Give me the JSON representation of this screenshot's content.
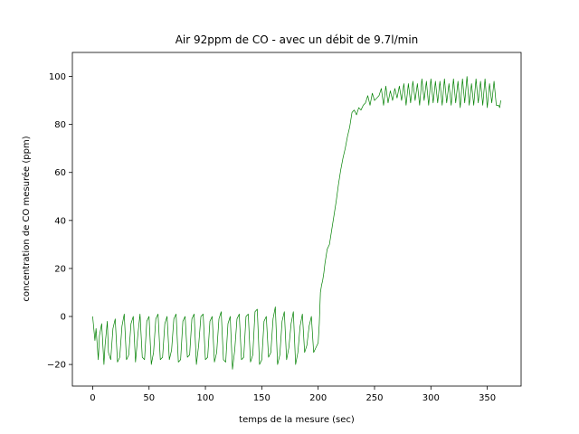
{
  "chart_data": {
    "type": "line",
    "title": "Air 92ppm de CO - avec un débit de 9.7l/min",
    "xlabel": "temps de la mesure (sec)",
    "ylabel": "concentration de CO mesurée (ppm)",
    "xlim": [
      -18,
      380
    ],
    "ylim": [
      -29,
      110
    ],
    "xticks": [
      0,
      50,
      100,
      150,
      200,
      250,
      300,
      350
    ],
    "yticks": [
      -20,
      0,
      20,
      40,
      60,
      80,
      100
    ],
    "grid": false,
    "series_color": "#008000",
    "series": [
      {
        "x": [
          0,
          2,
          3,
          5,
          6,
          8,
          10,
          11,
          13,
          14,
          16,
          18,
          20,
          22,
          24,
          26,
          28,
          30,
          32,
          34,
          36,
          38,
          40,
          42,
          44,
          46,
          48,
          50,
          52,
          54,
          56,
          58,
          60,
          62,
          64,
          66,
          68,
          70,
          72,
          74,
          76,
          78,
          80,
          82,
          84,
          86,
          88,
          90,
          92,
          94,
          96,
          98,
          100,
          102,
          104,
          106,
          108,
          110,
          112,
          114,
          116,
          118,
          120,
          122,
          124,
          126,
          128,
          130,
          132,
          134,
          136,
          138,
          140,
          142,
          144,
          146,
          148,
          150,
          152,
          154,
          156,
          158,
          160,
          162,
          164,
          166,
          168,
          170,
          172,
          174,
          176,
          178,
          180,
          182,
          184,
          186,
          188,
          190,
          192,
          194,
          196,
          198,
          200,
          201,
          202,
          203,
          204,
          205,
          206,
          207,
          208,
          210,
          211,
          212,
          214,
          216,
          218,
          220,
          222,
          224,
          226,
          228,
          230,
          232,
          234,
          236,
          238,
          240,
          242,
          244,
          246,
          248,
          250,
          252,
          254,
          256,
          258,
          260,
          262,
          264,
          266,
          268,
          270,
          272,
          274,
          276,
          278,
          280,
          282,
          284,
          286,
          288,
          290,
          292,
          294,
          296,
          298,
          300,
          302,
          304,
          306,
          308,
          310,
          312,
          314,
          316,
          318,
          320,
          322,
          324,
          326,
          328,
          330,
          332,
          334,
          336,
          338,
          340,
          342,
          344,
          346,
          348,
          350,
          352,
          354,
          356,
          358,
          360,
          361,
          362
        ],
        "y": [
          0,
          -10,
          -5,
          -18,
          -8,
          -3,
          -20,
          -12,
          -2,
          -15,
          -18,
          -5,
          -1,
          -19,
          -17,
          -4,
          1,
          -18,
          -16,
          -3,
          0,
          -19,
          -8,
          1,
          -17,
          -18,
          -2,
          0,
          -20,
          -15,
          -1,
          1,
          -18,
          -17,
          -3,
          0,
          -18,
          -14,
          -1,
          1,
          -19,
          -18,
          -2,
          0,
          -17,
          -16,
          -1,
          1,
          -20,
          -12,
          0,
          1,
          -18,
          -17,
          -2,
          0,
          -19,
          -15,
          -1,
          2,
          -18,
          -19,
          -3,
          0,
          -22,
          -14,
          -1,
          1,
          -18,
          -17,
          0,
          1,
          -19,
          -16,
          2,
          3,
          -20,
          -18,
          -2,
          0,
          -17,
          -15,
          -1,
          4,
          -20,
          -16,
          -2,
          2,
          -18,
          -13,
          -3,
          2,
          -20,
          -15,
          -4,
          1,
          -15,
          -12,
          -4,
          0,
          -15,
          -13,
          -11,
          -3,
          10,
          13,
          15,
          18,
          22,
          25,
          28,
          30,
          33,
          36,
          42,
          48,
          55,
          61,
          66,
          70,
          75,
          79,
          85,
          86,
          84,
          87,
          86,
          88,
          89,
          92,
          88,
          93,
          90,
          91,
          92,
          95,
          88,
          96,
          89,
          94,
          90,
          95,
          91,
          96,
          90,
          97,
          88,
          97,
          89,
          98,
          90,
          97,
          88,
          99,
          90,
          98,
          88,
          99,
          89,
          98,
          89,
          98,
          88,
          99,
          89,
          97,
          88,
          99,
          89,
          98,
          87,
          99,
          89,
          100,
          88,
          97,
          88,
          99,
          89,
          98,
          88,
          99,
          87,
          97,
          89,
          98,
          88,
          88,
          87,
          90
        ]
      }
    ]
  }
}
